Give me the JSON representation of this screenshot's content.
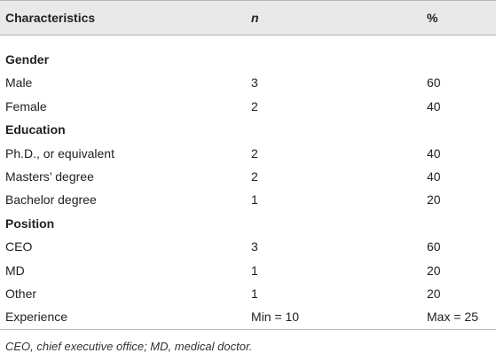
{
  "table": {
    "header": [
      "Characteristics",
      "n",
      "%"
    ],
    "rows": [
      [
        "Gender"
      ],
      [
        "Male",
        3,
        60
      ],
      [
        "Female",
        2,
        40
      ],
      [
        "Education"
      ],
      [
        "Ph.D., or equivalent",
        2,
        40
      ],
      [
        "Masters’ degree",
        2,
        40
      ],
      [
        "Bachelor degree",
        1,
        20
      ],
      [
        "Position"
      ],
      [
        "CEO",
        3,
        60
      ],
      [
        "MD",
        1,
        20
      ],
      [
        "Other",
        1,
        20
      ],
      [
        "Experience",
        "Min = 10",
        "Max = 25"
      ]
    ]
  },
  "footnote": "CEO, chief executive office; MD, medical doctor."
}
